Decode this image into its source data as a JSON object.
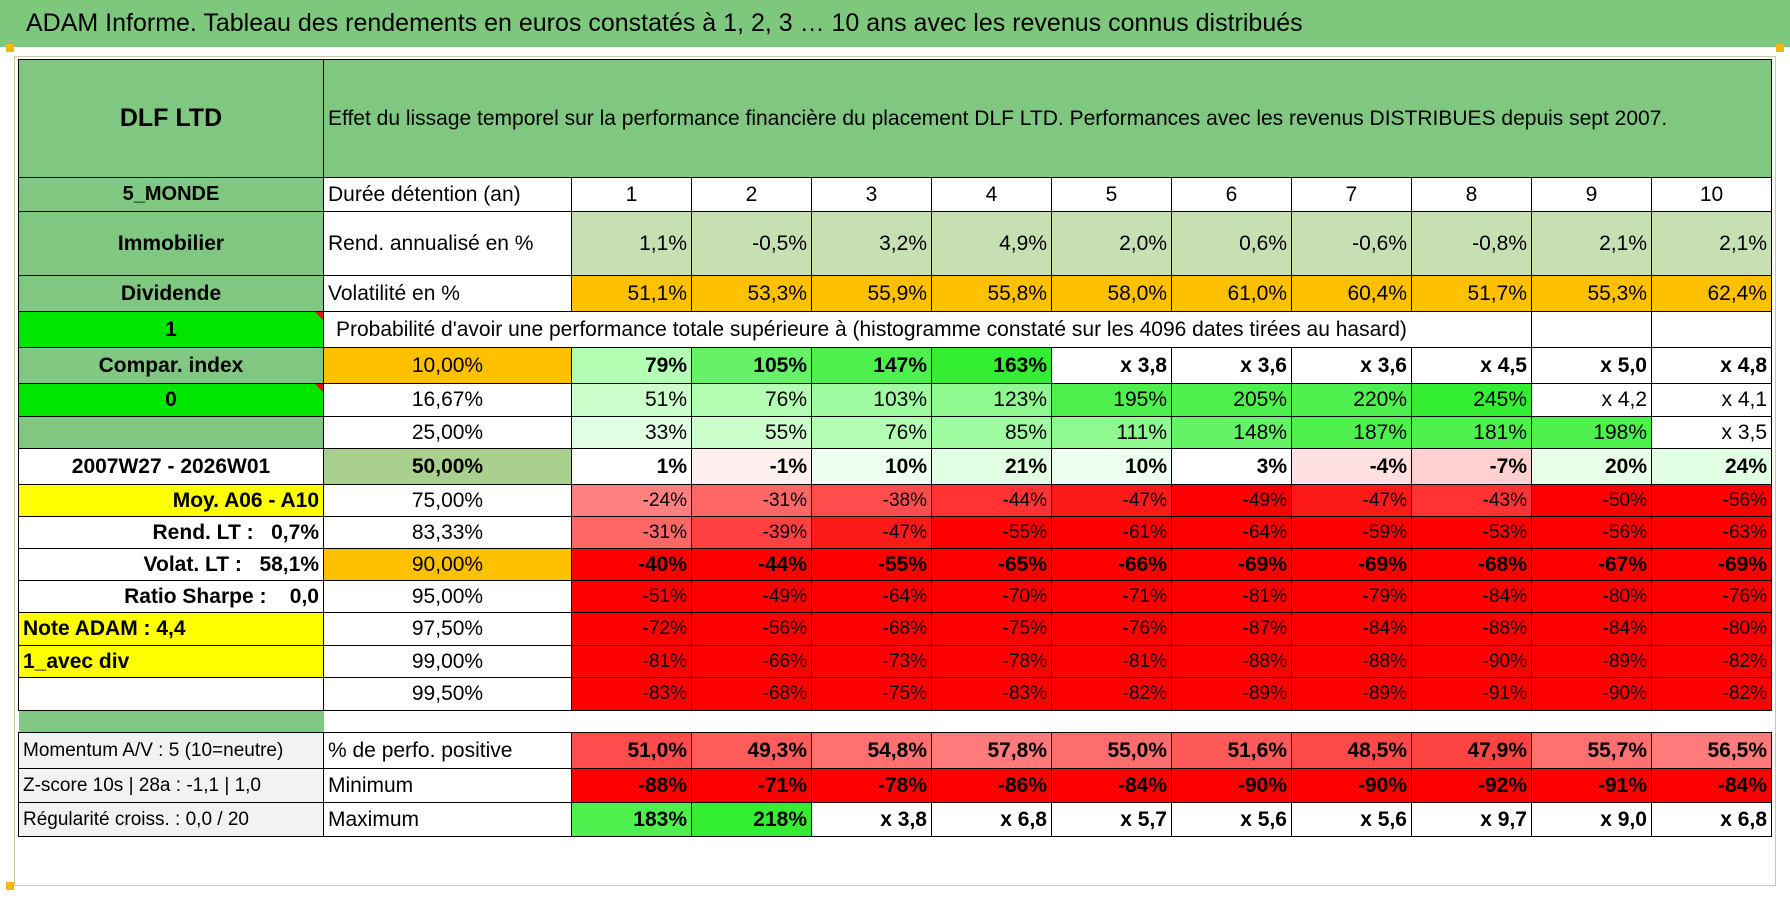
{
  "title": "ADAM Informe. Tableau des rendements en euros constatés à 1, 2, 3 … 10 ans avec les revenus connus distribués",
  "fund": {
    "name": "DLF LTD",
    "description": "Effet du lissage temporel sur la performance financière du placement DLF LTD. Performances avec les revenus DISTRIBUES depuis sept 2007."
  },
  "left_labels": {
    "zone": "5_MONDE",
    "category": "Immobilier",
    "distribution": "Dividende",
    "flag1": "1",
    "compar": "Compar. index",
    "flag0": "0",
    "period": "2007W27 - 2026W01",
    "moy": "Moy. A06 - A10",
    "rend_lt_label": "Rend. LT :",
    "rend_lt_value": "0,7%",
    "volat_lt_label": "Volat. LT :",
    "volat_lt_value": "58,1%",
    "sharpe_label": "Ratio Sharpe :",
    "sharpe_value": "0,0",
    "note": "Note ADAM : 4,4",
    "div_mode": "1_avec div"
  },
  "durations": {
    "label": "Durée détention (an)",
    "years": [
      "1",
      "2",
      "3",
      "4",
      "5",
      "6",
      "7",
      "8",
      "9",
      "10"
    ]
  },
  "annualized": {
    "label": "Rend. annualisé en %",
    "values": [
      "1,1%",
      "-0,5%",
      "3,2%",
      "4,9%",
      "2,0%",
      "0,6%",
      "-0,6%",
      "-0,8%",
      "2,1%",
      "2,1%"
    ]
  },
  "volatility": {
    "label": "Volatilité en %",
    "values": [
      "51,1%",
      "53,3%",
      "55,9%",
      "55,8%",
      "58,0%",
      "61,0%",
      "60,4%",
      "51,7%",
      "55,3%",
      "62,4%"
    ]
  },
  "probability_caption": "Probabilité d'avoir une performance totale supérieure à (histogramme constaté sur les 4096 dates tirées au hasard)",
  "prob_rows": [
    {
      "p": "10,00%",
      "values": [
        "79%",
        "105%",
        "147%",
        "163%",
        "x 3,8",
        "x 3,6",
        "x 3,6",
        "x 4,5",
        "x 5,0",
        "x 4,8"
      ]
    },
    {
      "p": "16,67%",
      "values": [
        "51%",
        "76%",
        "103%",
        "123%",
        "195%",
        "205%",
        "220%",
        "245%",
        "x 4,2",
        "x 4,1"
      ]
    },
    {
      "p": "25,00%",
      "values": [
        "33%",
        "55%",
        "76%",
        "85%",
        "111%",
        "148%",
        "187%",
        "181%",
        "198%",
        "x 3,5"
      ]
    },
    {
      "p": "50,00%",
      "values": [
        "1%",
        "-1%",
        "10%",
        "21%",
        "10%",
        "3%",
        "-4%",
        "-7%",
        "20%",
        "24%"
      ]
    },
    {
      "p": "75,00%",
      "values": [
        "-24%",
        "-31%",
        "-38%",
        "-44%",
        "-47%",
        "-49%",
        "-47%",
        "-43%",
        "-50%",
        "-56%"
      ]
    },
    {
      "p": "83,33%",
      "values": [
        "-31%",
        "-39%",
        "-47%",
        "-55%",
        "-61%",
        "-64%",
        "-59%",
        "-53%",
        "-56%",
        "-63%"
      ]
    },
    {
      "p": "90,00%",
      "values": [
        "-40%",
        "-44%",
        "-55%",
        "-65%",
        "-66%",
        "-69%",
        "-69%",
        "-68%",
        "-67%",
        "-69%"
      ]
    },
    {
      "p": "95,00%",
      "values": [
        "-51%",
        "-49%",
        "-64%",
        "-70%",
        "-71%",
        "-81%",
        "-79%",
        "-84%",
        "-80%",
        "-76%"
      ]
    },
    {
      "p": "97,50%",
      "values": [
        "-72%",
        "-56%",
        "-68%",
        "-75%",
        "-76%",
        "-87%",
        "-84%",
        "-88%",
        "-84%",
        "-80%"
      ]
    },
    {
      "p": "99,00%",
      "values": [
        "-81%",
        "-66%",
        "-73%",
        "-78%",
        "-81%",
        "-88%",
        "-88%",
        "-90%",
        "-89%",
        "-82%"
      ]
    },
    {
      "p": "99,50%",
      "values": [
        "-83%",
        "-68%",
        "-75%",
        "-83%",
        "-82%",
        "-89%",
        "-89%",
        "-91%",
        "-90%",
        "-82%"
      ]
    }
  ],
  "bottom": {
    "momentum": "Momentum A/V : 5 (10=neutre)",
    "zscore": "Z-score 10s | 28a : -1,1 | 1,0",
    "regularite": "Régularité croiss. : 0,0 / 20",
    "positive_label": "% de perfo. positive",
    "positive_values": [
      "51,0%",
      "49,3%",
      "54,8%",
      "57,8%",
      "55,0%",
      "51,6%",
      "48,5%",
      "47,9%",
      "55,7%",
      "56,5%"
    ],
    "minimum_label": "Minimum",
    "minimum_values": [
      "-88%",
      "-71%",
      "-78%",
      "-86%",
      "-84%",
      "-90%",
      "-90%",
      "-92%",
      "-91%",
      "-84%"
    ],
    "maximum_label": "Maximum",
    "maximum_values": [
      "183%",
      "218%",
      "x 3,8",
      "x 6,8",
      "x 5,7",
      "x 5,6",
      "x 5,6",
      "x 9,7",
      "x 9,0",
      "x 6,8"
    ]
  },
  "colors": {
    "header_green": "#7ec87e",
    "label_green": "#80c781",
    "bright_green": "#00e600",
    "orange": "#ffc000",
    "yellow": "#ffff00",
    "annualized_green": "#c6e0b4",
    "median_green": "#a9d08e",
    "dark_red": "#ff0000",
    "text_red": "#d81818"
  },
  "cell_fills": {
    "prob_rows": [
      [
        "#b3ffb3",
        "#66f266",
        "#4ef04e",
        "#33ee33",
        "#ffffff",
        "#ffffff",
        "#ffffff",
        "#ffffff",
        "#ffffff",
        "#ffffff"
      ],
      [
        "#ccffcc",
        "#b3ffb3",
        "#a0fca0",
        "#8ff98f",
        "#4ef04e",
        "#4ef04e",
        "#4ef04e",
        "#33ee33",
        "#ffffff",
        "#ffffff"
      ],
      [
        "#e3ffe3",
        "#ccffcc",
        "#b3ffb3",
        "#a0fca0",
        "#8ff98f",
        "#66f266",
        "#4ef04e",
        "#4ef04e",
        "#4ef04e",
        "#ffffff"
      ],
      [
        "#ffffff",
        "#fff0f0",
        "#eefeee",
        "#e3ffe3",
        "#eefeee",
        "#ffffff",
        "#ffe0e0",
        "#ffd0d0",
        "#e8ffe8",
        "#e3ffe3"
      ],
      [
        "#ff8080",
        "#ff6666",
        "#ff4c4c",
        "#ff3333",
        "#ff1a1a",
        "#ff0000",
        "#ff1a1a",
        "#ff3333",
        "#ff0000",
        "#ff0000"
      ],
      [
        "#ff6666",
        "#ff4040",
        "#ff1a1a",
        "#ff0000",
        "#ff0000",
        "#ff0000",
        "#ff0000",
        "#ff0000",
        "#ff0000",
        "#ff0000"
      ],
      [
        "#ff0000",
        "#ff0000",
        "#ff0000",
        "#ff0000",
        "#ff0000",
        "#ff0000",
        "#ff0000",
        "#ff0000",
        "#ff0000",
        "#ff0000"
      ],
      [
        "#ff0000",
        "#ff0000",
        "#ff0000",
        "#ff0000",
        "#ff0000",
        "#ff0000",
        "#ff0000",
        "#ff0000",
        "#ff0000",
        "#ff0000"
      ],
      [
        "#ff0000",
        "#ff0000",
        "#ff0000",
        "#ff0000",
        "#ff0000",
        "#ff0000",
        "#ff0000",
        "#ff0000",
        "#ff0000",
        "#ff0000"
      ],
      [
        "#ff0000",
        "#ff0000",
        "#ff0000",
        "#ff0000",
        "#ff0000",
        "#ff0000",
        "#ff0000",
        "#ff0000",
        "#ff0000",
        "#ff0000"
      ],
      [
        "#ff0000",
        "#ff0000",
        "#ff0000",
        "#ff0000",
        "#ff0000",
        "#ff0000",
        "#ff0000",
        "#ff0000",
        "#ff0000",
        "#ff0000"
      ]
    ],
    "positive": [
      "#ff4c4c",
      "#ff5c5c",
      "#ff7070",
      "#ff7a7a",
      "#ff6e6e",
      "#ff5a5a",
      "#ff4a4a",
      "#ff4444",
      "#ff7070",
      "#ff7a7a"
    ],
    "minimum": [
      "#ff0000",
      "#ff0000",
      "#ff0000",
      "#ff0000",
      "#ff0000",
      "#ff0000",
      "#ff0000",
      "#ff0000",
      "#ff0000",
      "#ff0000"
    ],
    "maximum": [
      "#4ef04e",
      "#33ee33",
      "#ffffff",
      "#ffffff",
      "#ffffff",
      "#ffffff",
      "#ffffff",
      "#ffffff",
      "#ffffff",
      "#ffffff"
    ]
  }
}
